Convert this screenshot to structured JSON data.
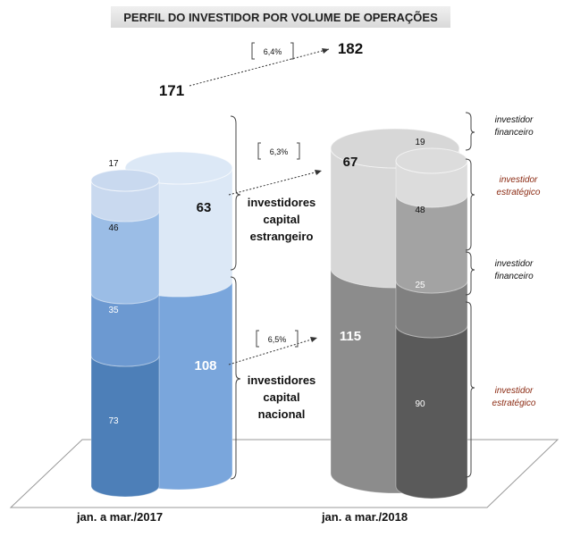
{
  "chart_data": {
    "type": "bar",
    "title": "PERFIL DO INVESTIDOR POR VOLUME DE OPERAÇÕES",
    "categories": [
      "jan. a mar./2017",
      "jan. a mar./2018"
    ],
    "totals": [
      171,
      182
    ],
    "total_growth": "6,4%",
    "groups": [
      {
        "name": "investidores capital estrangeiro",
        "values": [
          63,
          67
        ],
        "growth": "6,3%"
      },
      {
        "name": "investidores capital nacional",
        "values": [
          108,
          115
        ],
        "growth": "6,5%"
      }
    ],
    "series": [
      {
        "name": "investidor financeiro",
        "group": "estrangeiro",
        "values": [
          17,
          19
        ]
      },
      {
        "name": "investidor estratégico",
        "group": "estrangeiro",
        "values": [
          46,
          48
        ]
      },
      {
        "name": "investidor financeiro",
        "group": "nacional",
        "values": [
          35,
          25
        ]
      },
      {
        "name": "investidor estratégico",
        "group": "nacional",
        "values": [
          73,
          90
        ]
      }
    ],
    "group_labels": [
      "investidores",
      "capital",
      "estrangeiro",
      "investidores",
      "capital",
      "nacional"
    ],
    "side_labels": [
      [
        "investidor",
        "financeiro"
      ],
      [
        "investidor",
        "estratégico"
      ],
      [
        "investidor",
        "financeiro"
      ],
      [
        "investidor",
        "estratégico"
      ]
    ],
    "colors": {
      "y2017_group_light": "#dce8f6",
      "y2017_group_dark": "#7aa6dc",
      "y2017_seg": [
        "#c9d9ef",
        "#9bbde6",
        "#6c99d1",
        "#4d7fb8"
      ],
      "y2018_group_light": "#d7d7d7",
      "y2018_group_dark": "#8c8c8c",
      "y2018_seg": [
        "#dcdcdc",
        "#a3a3a3",
        "#808080",
        "#5a5a5a"
      ],
      "label_red": "#8b2a12"
    }
  }
}
